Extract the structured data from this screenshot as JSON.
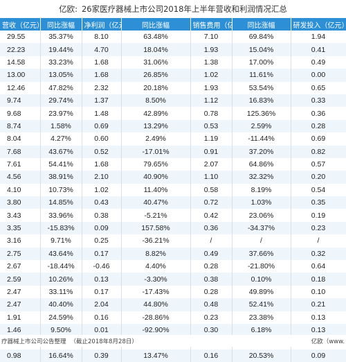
{
  "header": {
    "brand": "亿欧:",
    "title": "26家医疗器械上市公司2018年上半年营收和利润情况汇总"
  },
  "table": {
    "columns": [
      "营收（亿元）",
      "同比涨幅",
      "净利润（亿元）",
      "同比涨幅",
      "销售费用（亿元）",
      "同比涨幅",
      "研发投入（亿元）"
    ],
    "rows": [
      [
        "29.55",
        "35.37%",
        "8.10",
        "63.48%",
        "7.10",
        "69.84%",
        "1.94"
      ],
      [
        "22.23",
        "19.44%",
        "4.70",
        "18.04%",
        "1.93",
        "15.04%",
        "0.41"
      ],
      [
        "14.58",
        "33.23%",
        "1.68",
        "31.06%",
        "1.38",
        "17.00%",
        "0.49"
      ],
      [
        "13.00",
        "13.05%",
        "1.68",
        "26.85%",
        "1.02",
        "11.61%",
        "0.00"
      ],
      [
        "12.46",
        "47.82%",
        "2.32",
        "20.18%",
        "1.93",
        "53.54%",
        "0.65"
      ],
      [
        "9.74",
        "29.74%",
        "1.37",
        "8.50%",
        "1.12",
        "16.83%",
        "0.33"
      ],
      [
        "9.68",
        "23.97%",
        "1.48",
        "42.89%",
        "0.78",
        "125.36%",
        "0.36"
      ],
      [
        "8.74",
        "1.58%",
        "0.69",
        "13.29%",
        "0.53",
        "2.59%",
        "0.28"
      ],
      [
        "8.04",
        "4.27%",
        "0.60",
        "2.49%",
        "1.19",
        "-11.44%",
        "0.69"
      ],
      [
        "7.68",
        "43.67%",
        "0.52",
        "-17.01%",
        "0.91",
        "37.20%",
        "0.82"
      ],
      [
        "7.61",
        "54.41%",
        "1.68",
        "79.65%",
        "2.07",
        "64.86%",
        "0.57"
      ],
      [
        "4.56",
        "38.91%",
        "2.10",
        "40.90%",
        "1.10",
        "32.32%",
        "0.20"
      ],
      [
        "4.10",
        "10.73%",
        "1.02",
        "11.40%",
        "0.58",
        "8.19%",
        "0.54"
      ],
      [
        "3.80",
        "14.85%",
        "0.43",
        "40.47%",
        "0.72",
        "1.03%",
        "0.35"
      ],
      [
        "3.43",
        "33.96%",
        "0.38",
        "-5.21%",
        "0.42",
        "23.06%",
        "0.19"
      ],
      [
        "3.35",
        "-15.83%",
        "0.09",
        "157.58%",
        "0.36",
        "-34.37%",
        "0.23"
      ],
      [
        "3.16",
        "9.71%",
        "0.25",
        "-36.21%",
        "/",
        "/",
        "/"
      ],
      [
        "2.75",
        "43.64%",
        "0.17",
        "8.82%",
        "0.49",
        "37.66%",
        "0.32"
      ],
      [
        "2.67",
        "-18.44%",
        "-0.46",
        "4.40%",
        "0.28",
        "-21.80%",
        "0.64"
      ],
      [
        "2.59",
        "10.26%",
        "0.13",
        "-3.30%",
        "0.38",
        "0.10%",
        "0.18"
      ],
      [
        "2.47",
        "33.11%",
        "0.17",
        "-17.43%",
        "0.28",
        "49.89%",
        "0.10"
      ],
      [
        "2.47",
        "40.40%",
        "2.04",
        "44.80%",
        "0.48",
        "52.41%",
        "0.21"
      ],
      [
        "1.91",
        "24.59%",
        "0.16",
        "-28.86%",
        "0.23",
        "23.38%",
        "0.13"
      ],
      [
        "1.46",
        "9.50%",
        "0.01",
        "-92.90%",
        "0.30",
        "6.18%",
        "0.13"
      ],
      [
        "1.28",
        "-9.98%",
        "0.25",
        "-33.30%",
        "0.18",
        "27.59%",
        "0.09"
      ],
      [
        "0.98",
        "16.64%",
        "0.39",
        "13.47%",
        "0.16",
        "20.53%",
        "0.09"
      ]
    ]
  },
  "footer": {
    "source": "疗器械上市公司公告整理",
    "date": "（截止2018年8月28日）",
    "brand": "亿欧（www."
  }
}
